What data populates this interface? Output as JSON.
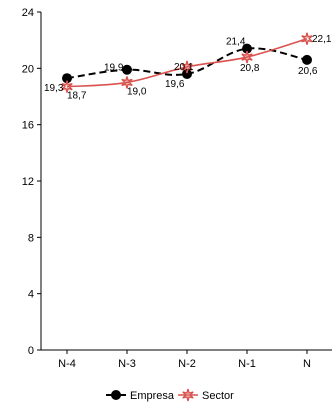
{
  "chart_data": {
    "type": "line",
    "categories": [
      "N-4",
      "N-3",
      "N-2",
      "N-1",
      "N"
    ],
    "ylim": [
      0,
      24
    ],
    "yticks": [
      0,
      4,
      8,
      12,
      16,
      20,
      24
    ],
    "series": [
      {
        "name": "Empresa",
        "values": [
          19.3,
          19.9,
          19.6,
          21.4,
          20.6
        ],
        "labels": [
          "19,3",
          "19,9",
          "19,6",
          "21,4",
          "20,6"
        ],
        "color": "#000000",
        "line_style": "dashed",
        "marker": "circle"
      },
      {
        "name": "Sector",
        "values": [
          18.7,
          19.0,
          20.1,
          20.8,
          22.1
        ],
        "labels": [
          "18,7",
          "19,0",
          "20,1",
          "20,8",
          "22,1"
        ],
        "color": "#d9534f",
        "line_style": "solid",
        "marker": "star"
      }
    ],
    "grid": false,
    "legend_position": "bottom"
  }
}
